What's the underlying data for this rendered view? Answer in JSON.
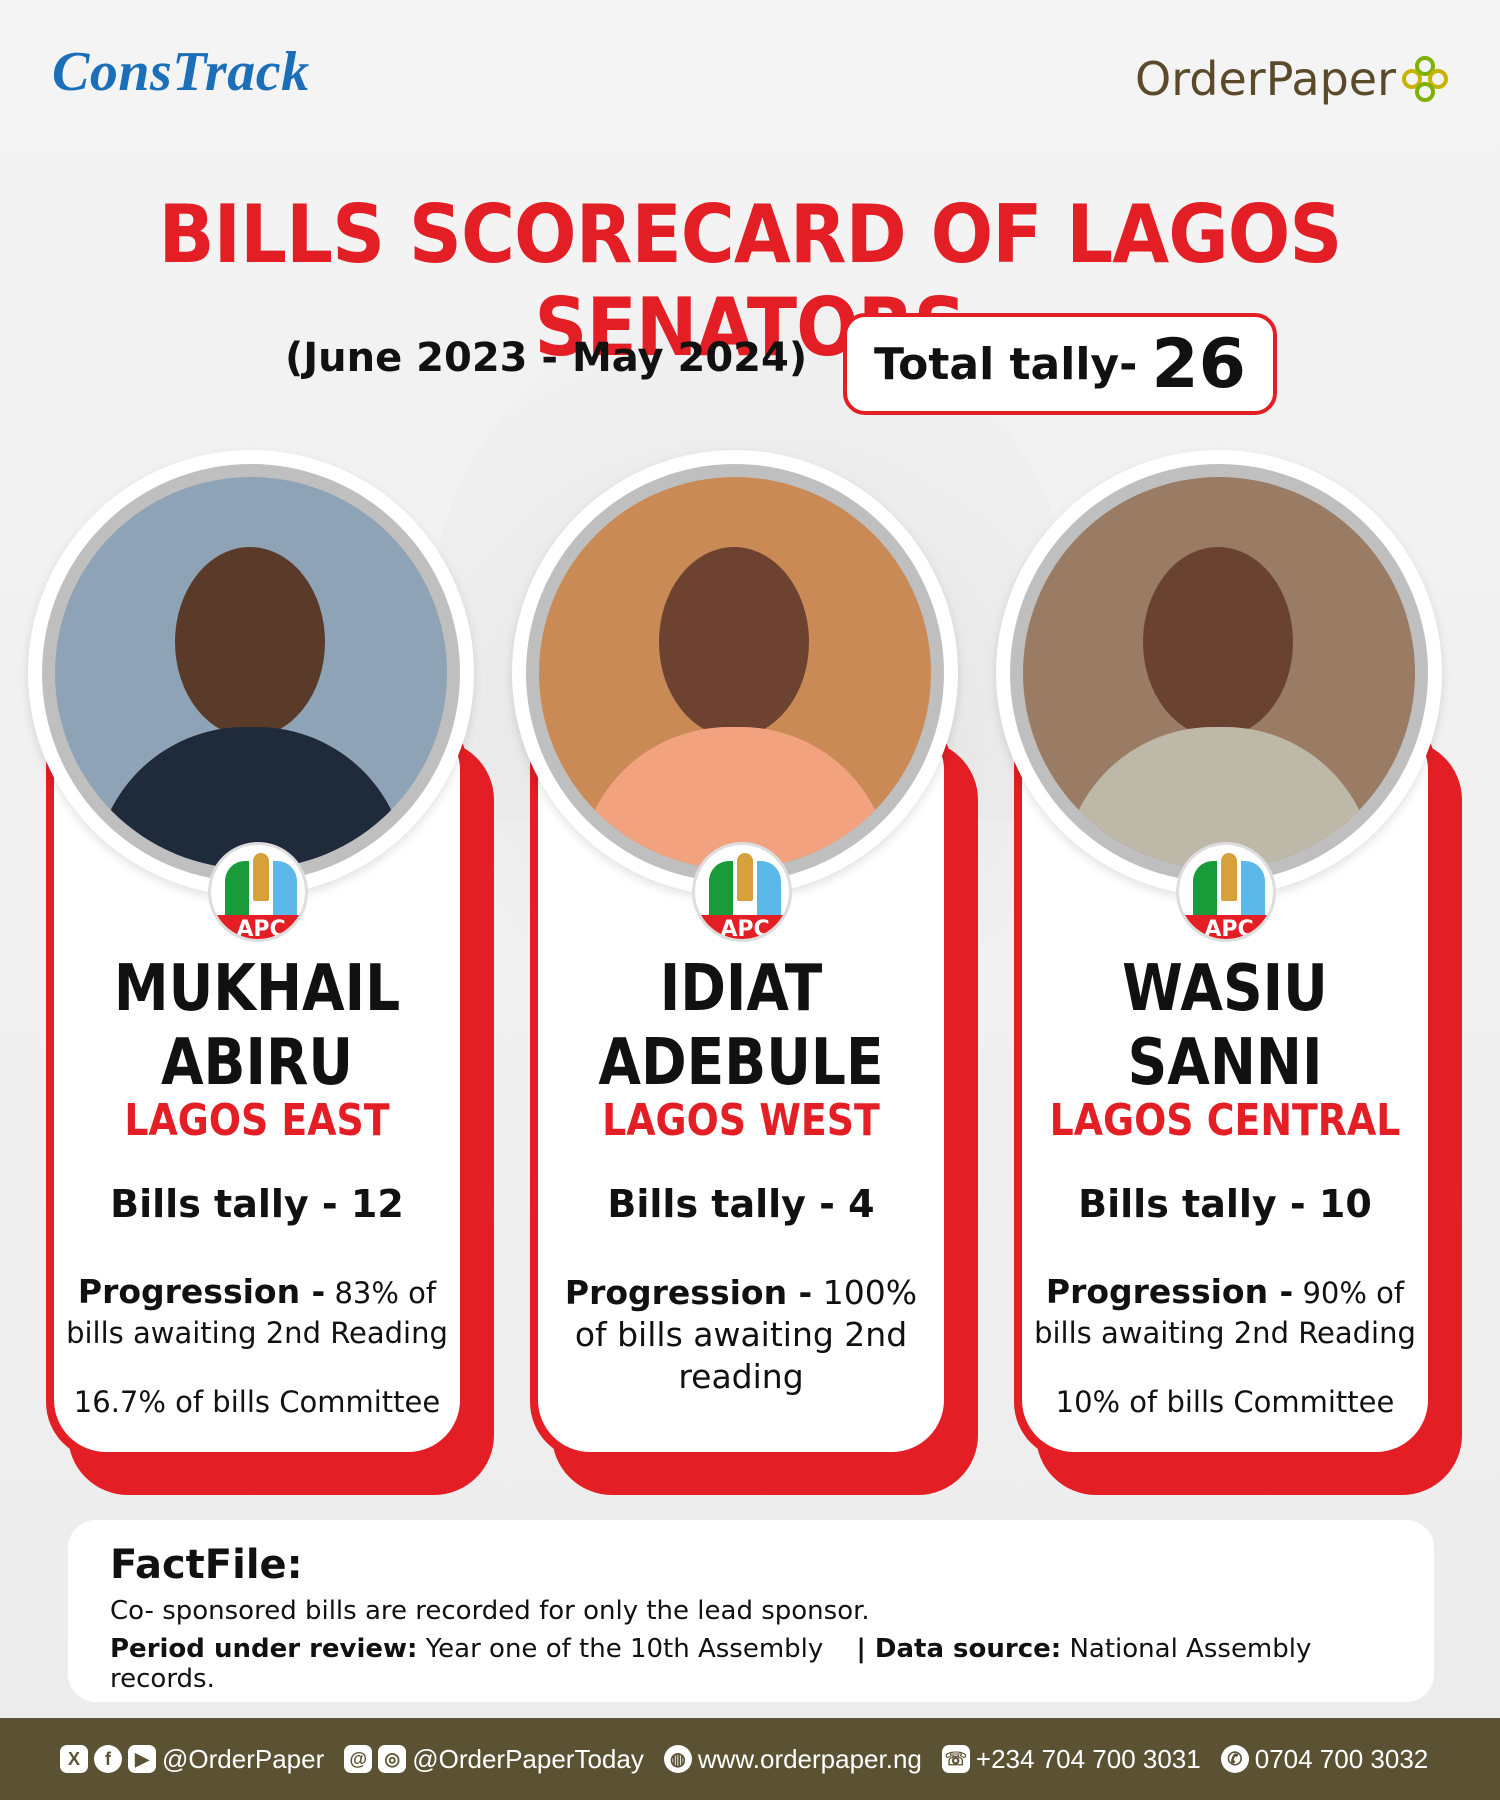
{
  "brand": {
    "left_logo": "ConsTrack",
    "right_logo": "OrderPaper"
  },
  "title": "BILLS SCORECARD OF LAGOS SENATORS",
  "period": "(June 2023 - May 2024)",
  "total": {
    "label": "Total tally-",
    "value": "26"
  },
  "senators": [
    {
      "name_line1": "MUKHAIL",
      "name_line2": "ABIRU",
      "district": "LAGOS EAST",
      "party": "APC",
      "bills": "Bills tally - 12",
      "progression_label": "Progression -",
      "progression_text": "83% of bills awaiting 2nd Reading",
      "committee": "16.7% of bills Committee",
      "colors": {
        "bg": "#8ea3b5",
        "skin": "#5a3a28",
        "suit": "#1f2a3a"
      }
    },
    {
      "name_line1": "IDIAT",
      "name_line2": "ADEBULE",
      "district": "LAGOS WEST",
      "party": "APC",
      "bills": "Bills tally - 4",
      "progression_label": "Progression -",
      "progression_text": "100% of bills awaiting 2nd reading",
      "committee": "",
      "colors": {
        "bg": "#c98a55",
        "skin": "#6e4230",
        "suit": "#f2a27f"
      }
    },
    {
      "name_line1": "WASIU",
      "name_line2": "SANNI",
      "district": "LAGOS CENTRAL",
      "party": "APC",
      "bills": "Bills tally - 10",
      "progression_label": "Progression -",
      "progression_text": "90% of bills awaiting 2nd Reading",
      "committee": "10% of bills Committee",
      "colors": {
        "bg": "#9a7b64",
        "skin": "#6a4330",
        "suit": "#bdb8a8"
      }
    }
  ],
  "factfile": {
    "title": "FactFile:",
    "line1": "Co- sponsored bills are recorded for only the lead sponsor.",
    "review_label": "Period under review:",
    "review_value": "Year one of the 10th Assembly",
    "source_label": "| Data source:",
    "source_value": "National Assembly records."
  },
  "footer": {
    "social1": "@OrderPaper",
    "social2": "@OrderPaperToday",
    "web": "www.orderpaper.ng",
    "phone": "+234 704 700 3031",
    "whatsapp": "0704 700 3032"
  }
}
